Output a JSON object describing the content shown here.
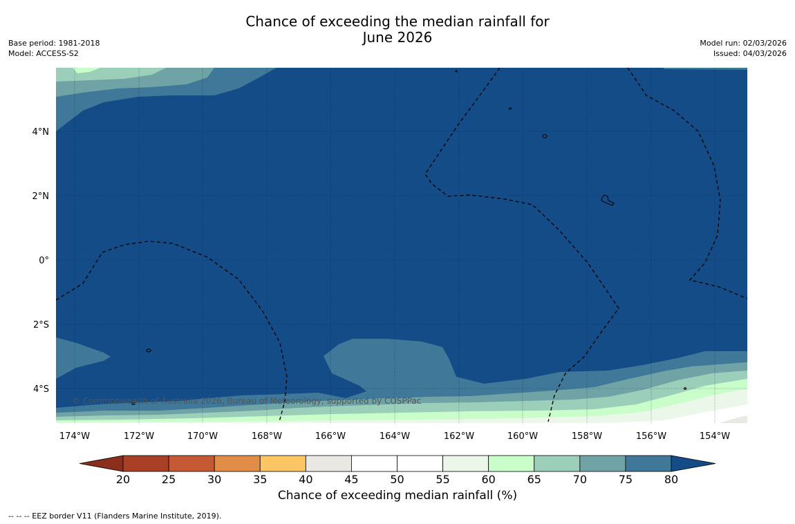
{
  "title": {
    "line1": "Chance of exceeding the median rainfall for",
    "line2": "June 2026"
  },
  "meta_left": {
    "base_period": "Base period: 1981-2018",
    "model": "Model: ACCESS-S2"
  },
  "meta_right": {
    "model_run": "Model run: 02/03/2026",
    "issued": "Issued: 04/03/2026"
  },
  "map": {
    "lon_labels": [
      "174°W",
      "172°W",
      "170°W",
      "168°W",
      "166°W",
      "164°W",
      "162°W",
      "160°W",
      "158°W",
      "156°W",
      "154°W"
    ],
    "lat_labels": [
      "4°N",
      "2°N",
      "0°",
      "2°S",
      "4°S"
    ],
    "copyright": "© Commonwealth of Australia 2026, Bureau of Meteorology, supported by COSPPac",
    "colors": {
      "c80": "#134c86",
      "c75": "#3f7898",
      "c70": "#70a3a6",
      "c65": "#9ccfb9",
      "c60": "#c9fdca",
      "c55": "#ebf7e9",
      "c50": "#ffffff",
      "c45": "#eae8e3"
    }
  },
  "colorbar": {
    "ticks": [
      "20",
      "25",
      "30",
      "35",
      "40",
      "45",
      "50",
      "55",
      "60",
      "65",
      "70",
      "75",
      "80"
    ],
    "colors": [
      "#a93f24",
      "#c55934",
      "#e18d48",
      "#fec564",
      "#eae8e3",
      "#ffffff",
      "#ffffff",
      "#ebf7e9",
      "#c9fdca",
      "#9ccfb9",
      "#70a3a6",
      "#3f7898"
    ],
    "low_extend_color": "#8b2f1d",
    "high_extend_color": "#134c86",
    "label": "Chance of exceeding median rainfall (%)"
  },
  "footnote": "--  --  -- EEZ border V11 (Flanders Marine Institute, 2019)."
}
